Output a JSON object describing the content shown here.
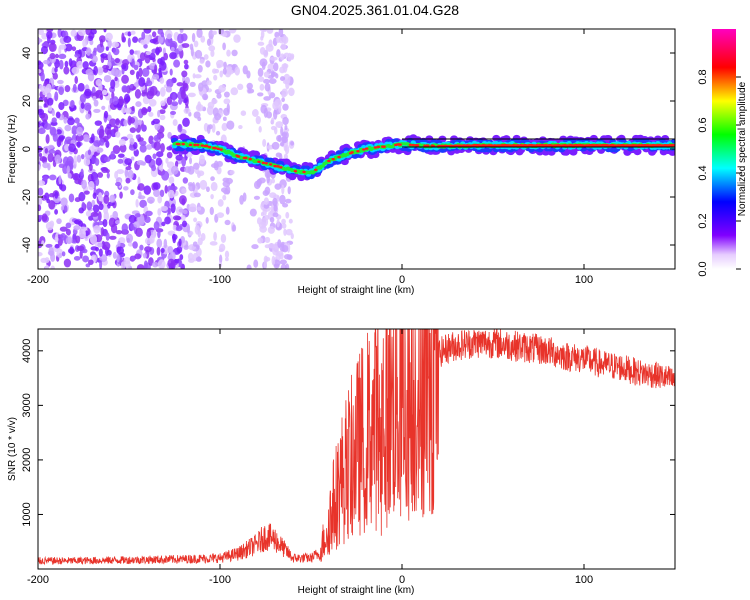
{
  "title": "GN04.2025.361.01.04.G28",
  "chart_data": [
    {
      "type": "heatmap",
      "name": "spectrogram",
      "xlabel": "Height of straight line (km)",
      "ylabel": "Frequency (Hz)",
      "xlim": [
        -200,
        150
      ],
      "ylim": [
        -50,
        50
      ],
      "x_ticks": [
        -200,
        -100,
        0,
        100
      ],
      "y_ticks": [
        -40,
        -20,
        0,
        20,
        40
      ],
      "colorbar": {
        "label": "Normalized spectral amplitude",
        "range": [
          0,
          1
        ],
        "ticks": [
          0.0,
          0.2,
          0.4,
          0.6,
          0.8
        ],
        "colormap": [
          "#ffffff",
          "#e6ccff",
          "#8000ff",
          "#0000ff",
          "#00ffff",
          "#00ff00",
          "#ffff00",
          "#ff0000",
          "#ff00c0"
        ]
      },
      "ridge": {
        "description": "dominant frequency trace",
        "x": [
          -120,
          -110,
          -100,
          -90,
          -80,
          -70,
          -60,
          -50,
          -40,
          -30,
          -20,
          -10,
          0,
          10,
          20,
          40,
          60,
          80,
          100,
          120,
          150
        ],
        "y": [
          2,
          1.5,
          0,
          -3,
          -5,
          -7,
          -9,
          -10,
          -5,
          -2,
          0,
          1,
          2,
          1.5,
          1.2,
          1.5,
          1.5,
          1.5,
          1.5,
          1.5,
          1.5
        ]
      },
      "noise_region_x": [
        -200,
        -60
      ]
    },
    {
      "type": "line",
      "name": "snr",
      "xlabel": "Height of straight line (km)",
      "ylabel": "SNR (10 * v/v)",
      "xlim": [
        -200,
        150
      ],
      "ylim": [
        0,
        4400
      ],
      "x_ticks": [
        -200,
        -100,
        0,
        100
      ],
      "y_ticks": [
        1000,
        2000,
        3000,
        4000
      ],
      "color": "#e8332a",
      "series": {
        "name": "SNR",
        "x": [
          -200,
          -180,
          -160,
          -140,
          -120,
          -100,
          -90,
          -80,
          -75,
          -70,
          -60,
          -50,
          -45,
          -40,
          -35,
          -30,
          -25,
          -20,
          -15,
          -10,
          -5,
          0,
          5,
          10,
          15,
          20,
          25,
          30,
          40,
          50,
          60,
          70,
          80,
          90,
          100,
          110,
          120,
          130,
          140,
          150
        ],
        "y": [
          150,
          150,
          160,
          170,
          180,
          200,
          280,
          450,
          600,
          550,
          200,
          200,
          300,
          900,
          1500,
          1900,
          2200,
          2500,
          2700,
          2900,
          3000,
          3100,
          3200,
          3400,
          3700,
          3950,
          4050,
          4100,
          4150,
          4150,
          4100,
          4050,
          4000,
          3900,
          3850,
          3750,
          3700,
          3600,
          3550,
          3450
        ]
      }
    }
  ]
}
